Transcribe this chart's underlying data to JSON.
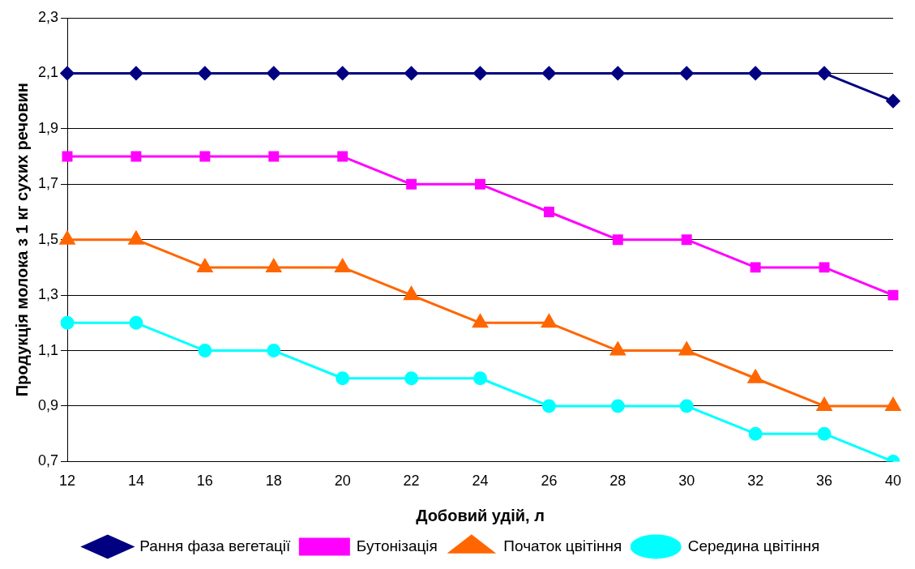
{
  "chart_data": {
    "type": "line",
    "xlabel": "Добовий удій, л",
    "ylabel": "Продукція молока з 1 кг сухих речовин",
    "categories": [
      "12",
      "14",
      "16",
      "18",
      "20",
      "22",
      "24",
      "26",
      "28",
      "30",
      "32",
      "36",
      "40"
    ],
    "ylim": [
      0.7,
      2.3
    ],
    "yticks": [
      {
        "value": 0.7,
        "label": "0,7"
      },
      {
        "value": 0.9,
        "label": "0,9"
      },
      {
        "value": 1.1,
        "label": "1,1"
      },
      {
        "value": 1.3,
        "label": "1,3"
      },
      {
        "value": 1.5,
        "label": "1,5"
      },
      {
        "value": 1.7,
        "label": "1,7"
      },
      {
        "value": 1.9,
        "label": "1,9"
      },
      {
        "value": 2.1,
        "label": "2,1"
      },
      {
        "value": 2.3,
        "label": "2,3"
      }
    ],
    "grid": "y",
    "legend": "bottom",
    "line_style": "solid",
    "series": [
      {
        "name": "Рання фаза вегетації",
        "color": "#000080",
        "marker": "diamond",
        "values": [
          2.1,
          2.1,
          2.1,
          2.1,
          2.1,
          2.1,
          2.1,
          2.1,
          2.1,
          2.1,
          2.1,
          2.1,
          2.0
        ]
      },
      {
        "name": "Бутонізація",
        "color": "#ff00ff",
        "marker": "square",
        "values": [
          1.8,
          1.8,
          1.8,
          1.8,
          1.8,
          1.7,
          1.7,
          1.6,
          1.5,
          1.5,
          1.4,
          1.4,
          1.3
        ]
      },
      {
        "name": "Початок цвітіння",
        "color": "#ff6600",
        "marker": "triangle",
        "values": [
          1.5,
          1.5,
          1.4,
          1.4,
          1.4,
          1.3,
          1.2,
          1.2,
          1.1,
          1.1,
          1.0,
          0.9,
          0.9
        ]
      },
      {
        "name": "Середина цвітіння",
        "color": "#00ffff",
        "marker": "circle",
        "values": [
          1.2,
          1.2,
          1.1,
          1.1,
          1.0,
          1.0,
          1.0,
          0.9,
          0.9,
          0.9,
          0.8,
          0.8,
          0.7
        ]
      }
    ]
  }
}
